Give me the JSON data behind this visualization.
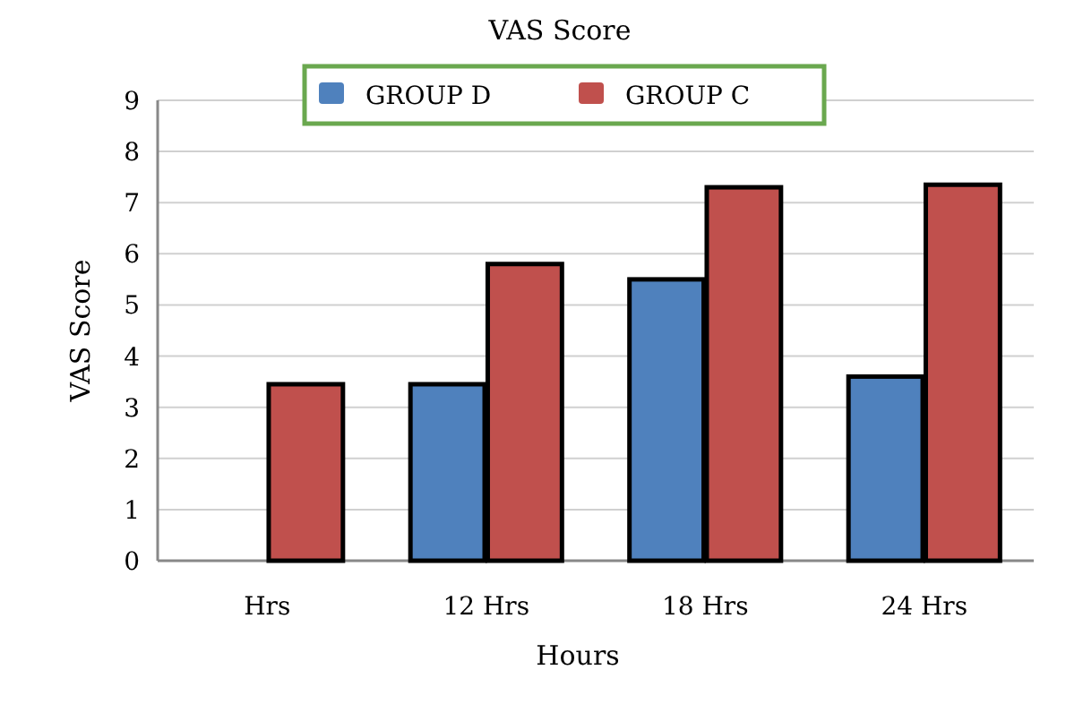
{
  "chart_data": {
    "type": "bar",
    "title": "VAS Score",
    "xlabel": "Hours",
    "ylabel": "VAS Score",
    "categories": [
      "Hrs",
      "12 Hrs",
      "18 Hrs",
      "24 Hrs"
    ],
    "series": [
      {
        "name": "GROUP D",
        "color": "#4f81bd",
        "values": [
          null,
          3.45,
          5.5,
          3.6
        ]
      },
      {
        "name": "GROUP C",
        "color": "#c0504d",
        "values": [
          3.45,
          5.8,
          7.3,
          7.35
        ]
      }
    ],
    "ylim": [
      0,
      9
    ],
    "yticks": [
      0,
      1,
      2,
      3,
      4,
      5,
      6,
      7,
      8,
      9
    ],
    "grid": "y",
    "legend": "top"
  }
}
